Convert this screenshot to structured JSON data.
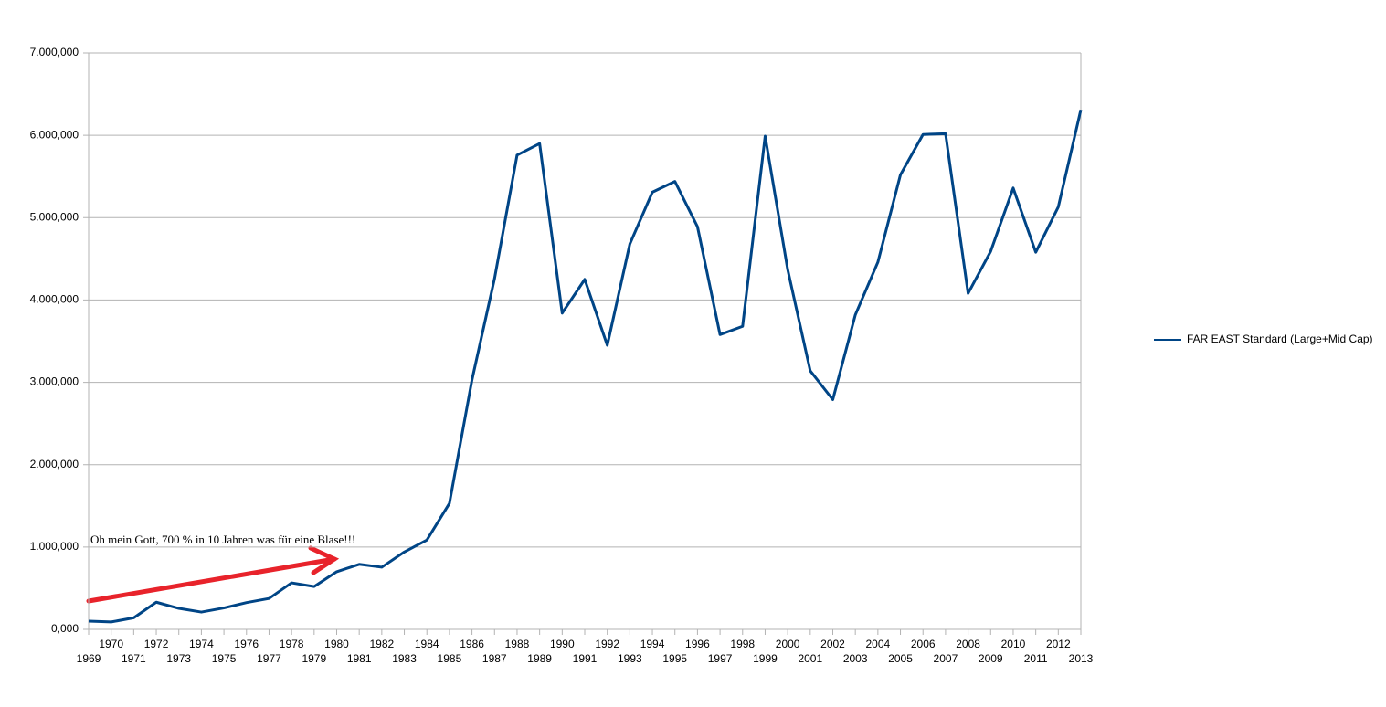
{
  "chart_data": {
    "type": "line",
    "categories": [
      "1969",
      "1970",
      "1971",
      "1972",
      "1973",
      "1974",
      "1975",
      "1976",
      "1977",
      "1978",
      "1979",
      "1980",
      "1981",
      "1982",
      "1983",
      "1984",
      "1985",
      "1986",
      "1987",
      "1988",
      "1989",
      "1990",
      "1991",
      "1992",
      "1993",
      "1994",
      "1995",
      "1996",
      "1997",
      "1998",
      "1999",
      "2000",
      "2001",
      "2002",
      "2003",
      "2004",
      "2005",
      "2006",
      "2007",
      "2008",
      "2009",
      "2010",
      "2011",
      "2012",
      "2013"
    ],
    "series": [
      {
        "name": "FAR EAST Standard (Large+Mid Cap)",
        "color": "#004586",
        "values": [
          100000,
          90000,
          140000,
          330000,
          255000,
          210000,
          260000,
          325000,
          375000,
          565000,
          520000,
          700000,
          790000,
          755000,
          940000,
          1085000,
          1530000,
          3030000,
          4260000,
          5760000,
          5900000,
          3840000,
          4250000,
          3450000,
          4680000,
          5310000,
          5440000,
          4890000,
          3580000,
          3680000,
          5990000,
          4370000,
          3140000,
          2790000,
          3820000,
          4460000,
          5520000,
          6010000,
          6020000,
          4080000,
          4590000,
          5360000,
          4580000,
          5130000,
          6310000
        ]
      }
    ],
    "ylim": [
      0,
      7000000
    ],
    "yticks": [
      {
        "value": 0,
        "label": "0,000"
      },
      {
        "value": 1000000,
        "label": "1.000,000"
      },
      {
        "value": 2000000,
        "label": "2.000,000"
      },
      {
        "value": 3000000,
        "label": "3.000,000"
      },
      {
        "value": 4000000,
        "label": "4.000,000"
      },
      {
        "value": 5000000,
        "label": "5.000,000"
      },
      {
        "value": 6000000,
        "label": "6.000,000"
      },
      {
        "value": 7000000,
        "label": "7.000,000"
      }
    ],
    "grid": true,
    "legend": "right",
    "annotation": "Oh mein Gott, 700 % in 10 Jahren was für eine Blase!!!"
  }
}
